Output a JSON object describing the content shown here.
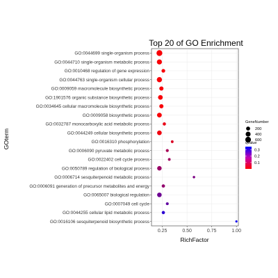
{
  "chart_data": {
    "type": "scatter",
    "title": "Top 20 of GO Enrichment",
    "xlabel": "RichFactor",
    "ylabel": "GOterm",
    "xlim": [
      0.14,
      1.02
    ],
    "xticks": [
      0.25,
      0.5,
      0.75,
      1.0
    ],
    "xtick_labels": [
      "0.25",
      "0.50",
      "0.75",
      "1.00"
    ],
    "grid": true,
    "legend_placement": "right",
    "size_legend": {
      "title": "GeneNumber",
      "values": [
        200,
        400,
        600
      ],
      "labels": [
        "200",
        "400",
        "600"
      ]
    },
    "color_legend": {
      "title": "qvalue",
      "ticks": [
        0.3,
        0.2,
        0.1
      ],
      "tick_labels": [
        "0.3",
        "0.2",
        "0.1"
      ],
      "range": [
        0.0,
        0.35
      ],
      "low_color": "#ff0000",
      "high_color": "#0000ff"
    },
    "points": [
      {
        "term": "GO:0044699 single-organism process",
        "rich_factor": 0.22,
        "gene_number": 640,
        "qvalue": 0.01
      },
      {
        "term": "GO:0044710 single-organism metabolic process",
        "rich_factor": 0.22,
        "gene_number": 430,
        "qvalue": 0.01
      },
      {
        "term": "GO:0010468 regulation of gene expression",
        "rich_factor": 0.26,
        "gene_number": 150,
        "qvalue": 0.01
      },
      {
        "term": "GO:0044763 single-organism cellular process",
        "rich_factor": 0.22,
        "gene_number": 460,
        "qvalue": 0.01
      },
      {
        "term": "GO:0009059 macromolecule biosynthetic process",
        "rich_factor": 0.24,
        "gene_number": 240,
        "qvalue": 0.01
      },
      {
        "term": "GO:1901576 organic substance biosynthetic process",
        "rich_factor": 0.23,
        "gene_number": 330,
        "qvalue": 0.01
      },
      {
        "term": "GO:0034645 cellular macromolecule biosynthetic process",
        "rich_factor": 0.24,
        "gene_number": 230,
        "qvalue": 0.01
      },
      {
        "term": "GO:0009058 biosynthetic process",
        "rich_factor": 0.22,
        "gene_number": 350,
        "qvalue": 0.01
      },
      {
        "term": "GO:0032787 monocarboxylic acid metabolic process",
        "rich_factor": 0.27,
        "gene_number": 90,
        "qvalue": 0.03
      },
      {
        "term": "GO:0044249 cellular biosynthetic process",
        "rich_factor": 0.22,
        "gene_number": 320,
        "qvalue": 0.02
      },
      {
        "term": "GO:0016310 phosphorylation",
        "rich_factor": 0.35,
        "gene_number": 40,
        "qvalue": 0.05
      },
      {
        "term": "GO:0006090 pyruvate metabolic process",
        "rich_factor": 0.3,
        "gene_number": 60,
        "qvalue": 0.12
      },
      {
        "term": "GO:0022402 cell cycle process",
        "rich_factor": 0.32,
        "gene_number": 40,
        "qvalue": 0.13
      },
      {
        "term": "GO:0050789 regulation of biological process",
        "rich_factor": 0.22,
        "gene_number": 290,
        "qvalue": 0.14
      },
      {
        "term": "GO:0006714 sesquiterpenoid metabolic process",
        "rich_factor": 0.57,
        "gene_number": 20,
        "qvalue": 0.18
      },
      {
        "term": "GO:0006091 generation of precursor metabolites and energy",
        "rich_factor": 0.26,
        "gene_number": 100,
        "qvalue": 0.15
      },
      {
        "term": "GO:0065007 biological regulation",
        "rich_factor": 0.22,
        "gene_number": 310,
        "qvalue": 0.2
      },
      {
        "term": "GO:0007049 cell cycle",
        "rich_factor": 0.3,
        "gene_number": 50,
        "qvalue": 0.22
      },
      {
        "term": "GO:0044255 cellular lipid metabolic process",
        "rich_factor": 0.26,
        "gene_number": 90,
        "qvalue": 0.29
      },
      {
        "term": "GO:0016106 sesquiterpenoid biosynthetic process",
        "rich_factor": 1.0,
        "gene_number": 10,
        "qvalue": 0.33
      }
    ]
  }
}
